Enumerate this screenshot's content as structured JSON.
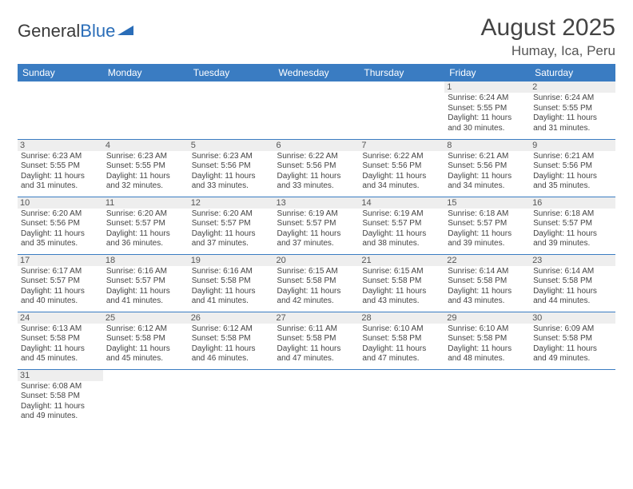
{
  "branding": {
    "logo_text_1": "General",
    "logo_text_2": "Blue",
    "logo_sail_color": "#2a6db8"
  },
  "title": "August 2025",
  "location": "Humay, Ica, Peru",
  "colors": {
    "header_bg": "#3a7cc2",
    "header_text": "#ffffff",
    "daynum_bg": "#eeeeee",
    "border": "#3a7cc2",
    "body_text": "#444444"
  },
  "typography": {
    "title_fontsize": 30,
    "location_fontsize": 17,
    "header_fontsize": 12,
    "daynum_fontsize": 11,
    "detail_fontsize": 10
  },
  "weekdays": [
    "Sunday",
    "Monday",
    "Tuesday",
    "Wednesday",
    "Thursday",
    "Friday",
    "Saturday"
  ],
  "weeks": [
    [
      null,
      null,
      null,
      null,
      null,
      {
        "day": "1",
        "sunrise": "Sunrise: 6:24 AM",
        "sunset": "Sunset: 5:55 PM",
        "daylight": "Daylight: 11 hours and 30 minutes."
      },
      {
        "day": "2",
        "sunrise": "Sunrise: 6:24 AM",
        "sunset": "Sunset: 5:55 PM",
        "daylight": "Daylight: 11 hours and 31 minutes."
      }
    ],
    [
      {
        "day": "3",
        "sunrise": "Sunrise: 6:23 AM",
        "sunset": "Sunset: 5:55 PM",
        "daylight": "Daylight: 11 hours and 31 minutes."
      },
      {
        "day": "4",
        "sunrise": "Sunrise: 6:23 AM",
        "sunset": "Sunset: 5:55 PM",
        "daylight": "Daylight: 11 hours and 32 minutes."
      },
      {
        "day": "5",
        "sunrise": "Sunrise: 6:23 AM",
        "sunset": "Sunset: 5:56 PM",
        "daylight": "Daylight: 11 hours and 33 minutes."
      },
      {
        "day": "6",
        "sunrise": "Sunrise: 6:22 AM",
        "sunset": "Sunset: 5:56 PM",
        "daylight": "Daylight: 11 hours and 33 minutes."
      },
      {
        "day": "7",
        "sunrise": "Sunrise: 6:22 AM",
        "sunset": "Sunset: 5:56 PM",
        "daylight": "Daylight: 11 hours and 34 minutes."
      },
      {
        "day": "8",
        "sunrise": "Sunrise: 6:21 AM",
        "sunset": "Sunset: 5:56 PM",
        "daylight": "Daylight: 11 hours and 34 minutes."
      },
      {
        "day": "9",
        "sunrise": "Sunrise: 6:21 AM",
        "sunset": "Sunset: 5:56 PM",
        "daylight": "Daylight: 11 hours and 35 minutes."
      }
    ],
    [
      {
        "day": "10",
        "sunrise": "Sunrise: 6:20 AM",
        "sunset": "Sunset: 5:56 PM",
        "daylight": "Daylight: 11 hours and 35 minutes."
      },
      {
        "day": "11",
        "sunrise": "Sunrise: 6:20 AM",
        "sunset": "Sunset: 5:57 PM",
        "daylight": "Daylight: 11 hours and 36 minutes."
      },
      {
        "day": "12",
        "sunrise": "Sunrise: 6:20 AM",
        "sunset": "Sunset: 5:57 PM",
        "daylight": "Daylight: 11 hours and 37 minutes."
      },
      {
        "day": "13",
        "sunrise": "Sunrise: 6:19 AM",
        "sunset": "Sunset: 5:57 PM",
        "daylight": "Daylight: 11 hours and 37 minutes."
      },
      {
        "day": "14",
        "sunrise": "Sunrise: 6:19 AM",
        "sunset": "Sunset: 5:57 PM",
        "daylight": "Daylight: 11 hours and 38 minutes."
      },
      {
        "day": "15",
        "sunrise": "Sunrise: 6:18 AM",
        "sunset": "Sunset: 5:57 PM",
        "daylight": "Daylight: 11 hours and 39 minutes."
      },
      {
        "day": "16",
        "sunrise": "Sunrise: 6:18 AM",
        "sunset": "Sunset: 5:57 PM",
        "daylight": "Daylight: 11 hours and 39 minutes."
      }
    ],
    [
      {
        "day": "17",
        "sunrise": "Sunrise: 6:17 AM",
        "sunset": "Sunset: 5:57 PM",
        "daylight": "Daylight: 11 hours and 40 minutes."
      },
      {
        "day": "18",
        "sunrise": "Sunrise: 6:16 AM",
        "sunset": "Sunset: 5:57 PM",
        "daylight": "Daylight: 11 hours and 41 minutes."
      },
      {
        "day": "19",
        "sunrise": "Sunrise: 6:16 AM",
        "sunset": "Sunset: 5:58 PM",
        "daylight": "Daylight: 11 hours and 41 minutes."
      },
      {
        "day": "20",
        "sunrise": "Sunrise: 6:15 AM",
        "sunset": "Sunset: 5:58 PM",
        "daylight": "Daylight: 11 hours and 42 minutes."
      },
      {
        "day": "21",
        "sunrise": "Sunrise: 6:15 AM",
        "sunset": "Sunset: 5:58 PM",
        "daylight": "Daylight: 11 hours and 43 minutes."
      },
      {
        "day": "22",
        "sunrise": "Sunrise: 6:14 AM",
        "sunset": "Sunset: 5:58 PM",
        "daylight": "Daylight: 11 hours and 43 minutes."
      },
      {
        "day": "23",
        "sunrise": "Sunrise: 6:14 AM",
        "sunset": "Sunset: 5:58 PM",
        "daylight": "Daylight: 11 hours and 44 minutes."
      }
    ],
    [
      {
        "day": "24",
        "sunrise": "Sunrise: 6:13 AM",
        "sunset": "Sunset: 5:58 PM",
        "daylight": "Daylight: 11 hours and 45 minutes."
      },
      {
        "day": "25",
        "sunrise": "Sunrise: 6:12 AM",
        "sunset": "Sunset: 5:58 PM",
        "daylight": "Daylight: 11 hours and 45 minutes."
      },
      {
        "day": "26",
        "sunrise": "Sunrise: 6:12 AM",
        "sunset": "Sunset: 5:58 PM",
        "daylight": "Daylight: 11 hours and 46 minutes."
      },
      {
        "day": "27",
        "sunrise": "Sunrise: 6:11 AM",
        "sunset": "Sunset: 5:58 PM",
        "daylight": "Daylight: 11 hours and 47 minutes."
      },
      {
        "day": "28",
        "sunrise": "Sunrise: 6:10 AM",
        "sunset": "Sunset: 5:58 PM",
        "daylight": "Daylight: 11 hours and 47 minutes."
      },
      {
        "day": "29",
        "sunrise": "Sunrise: 6:10 AM",
        "sunset": "Sunset: 5:58 PM",
        "daylight": "Daylight: 11 hours and 48 minutes."
      },
      {
        "day": "30",
        "sunrise": "Sunrise: 6:09 AM",
        "sunset": "Sunset: 5:58 PM",
        "daylight": "Daylight: 11 hours and 49 minutes."
      }
    ],
    [
      {
        "day": "31",
        "sunrise": "Sunrise: 6:08 AM",
        "sunset": "Sunset: 5:58 PM",
        "daylight": "Daylight: 11 hours and 49 minutes."
      },
      null,
      null,
      null,
      null,
      null,
      null
    ]
  ]
}
